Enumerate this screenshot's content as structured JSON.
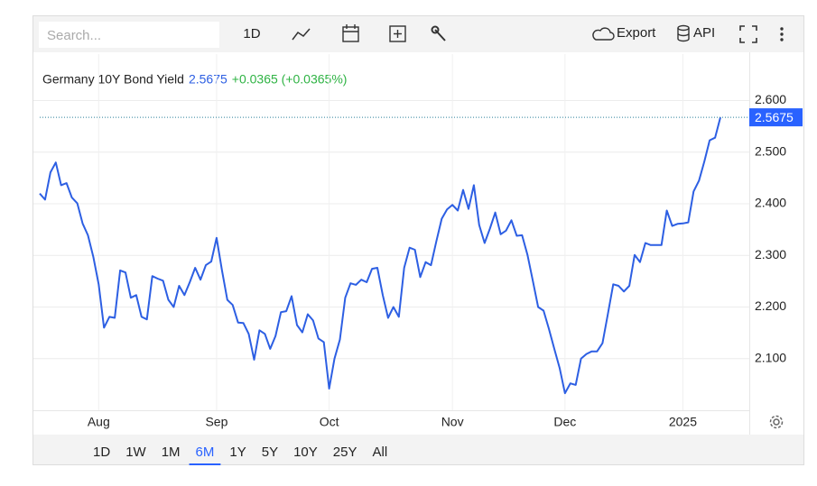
{
  "toolbar": {
    "search_placeholder": "Search...",
    "interval": "1D",
    "export": "Export",
    "api": "API"
  },
  "range_selector": {
    "options": [
      "1D",
      "1W",
      "1M",
      "6M",
      "1Y",
      "5Y",
      "10Y",
      "25Y",
      "All"
    ],
    "selected": "6M"
  },
  "chart_data": {
    "type": "line",
    "title": "Germany 10Y Bond Yield",
    "change_label": "+0.0365 (+0.0365%)",
    "categories": [
      null,
      null,
      null,
      null,
      null,
      null,
      null,
      null,
      null,
      null,
      null,
      "Aug",
      null,
      null,
      null,
      null,
      null,
      null,
      null,
      null,
      null,
      null,
      null,
      null,
      null,
      null,
      null,
      null,
      null,
      null,
      null,
      null,
      null,
      "Sep",
      null,
      null,
      null,
      null,
      null,
      null,
      null,
      null,
      null,
      null,
      null,
      null,
      null,
      null,
      null,
      null,
      null,
      null,
      null,
      null,
      "Oct",
      null,
      null,
      null,
      null,
      null,
      null,
      null,
      null,
      null,
      null,
      null,
      null,
      null,
      null,
      null,
      null,
      null,
      null,
      null,
      null,
      null,
      null,
      "Nov",
      null,
      null,
      null,
      null,
      null,
      null,
      null,
      null,
      null,
      null,
      null,
      null,
      null,
      null,
      null,
      null,
      null,
      null,
      null,
      null,
      "Dec",
      null,
      null,
      null,
      null,
      null,
      null,
      null,
      null,
      null,
      null,
      null,
      null,
      null,
      null,
      null,
      null,
      null,
      null,
      null,
      null,
      null,
      "2025",
      null,
      null,
      null,
      null,
      null,
      null,
      null
    ],
    "series": [
      {
        "name": "Germany 10Y Bond Yield",
        "color": "#2d5fe3",
        "values": [
          2.42,
          2.408,
          2.461,
          2.48,
          2.436,
          2.44,
          2.412,
          2.401,
          2.362,
          2.339,
          2.297,
          2.244,
          2.16,
          2.181,
          2.179,
          2.271,
          2.267,
          2.218,
          2.223,
          2.181,
          2.176,
          2.26,
          2.255,
          2.251,
          2.214,
          2.2,
          2.241,
          2.223,
          2.248,
          2.276,
          2.253,
          2.281,
          2.288,
          2.334,
          2.271,
          2.214,
          2.204,
          2.17,
          2.169,
          2.148,
          2.098,
          2.155,
          2.148,
          2.119,
          2.144,
          2.19,
          2.192,
          2.221,
          2.165,
          2.151,
          2.186,
          2.174,
          2.139,
          2.132,
          2.042,
          2.1,
          2.137,
          2.218,
          2.246,
          2.243,
          2.253,
          2.248,
          2.274,
          2.276,
          2.223,
          2.179,
          2.2,
          2.181,
          2.276,
          2.315,
          2.311,
          2.258,
          2.287,
          2.281,
          2.327,
          2.371,
          2.389,
          2.398,
          2.387,
          2.427,
          2.39,
          2.436,
          2.359,
          2.324,
          2.352,
          2.383,
          2.341,
          2.348,
          2.368,
          2.338,
          2.339,
          2.301,
          2.251,
          2.2,
          2.193,
          2.158,
          2.119,
          2.082,
          2.033,
          2.052,
          2.049,
          2.1,
          2.109,
          2.114,
          2.114,
          2.13,
          2.186,
          2.244,
          2.241,
          2.23,
          2.241,
          2.301,
          2.287,
          2.324,
          2.32,
          2.32,
          2.32,
          2.387,
          2.357,
          2.361,
          2.362,
          2.364,
          2.424,
          2.445,
          2.482,
          2.523,
          2.528,
          2.5675
        ]
      }
    ],
    "ylim": [
      2.0,
      2.69
    ],
    "yticks": [
      {
        "value": 2.1,
        "label": "2.100"
      },
      {
        "value": 2.2,
        "label": "2.200"
      },
      {
        "value": 2.3,
        "label": "2.300"
      },
      {
        "value": 2.4,
        "label": "2.400"
      },
      {
        "value": 2.5,
        "label": "2.500"
      },
      {
        "value": 2.6,
        "label": "2.600"
      }
    ],
    "grid": true,
    "change_color": "#2fb344",
    "last_value_color": "#2962ff"
  }
}
